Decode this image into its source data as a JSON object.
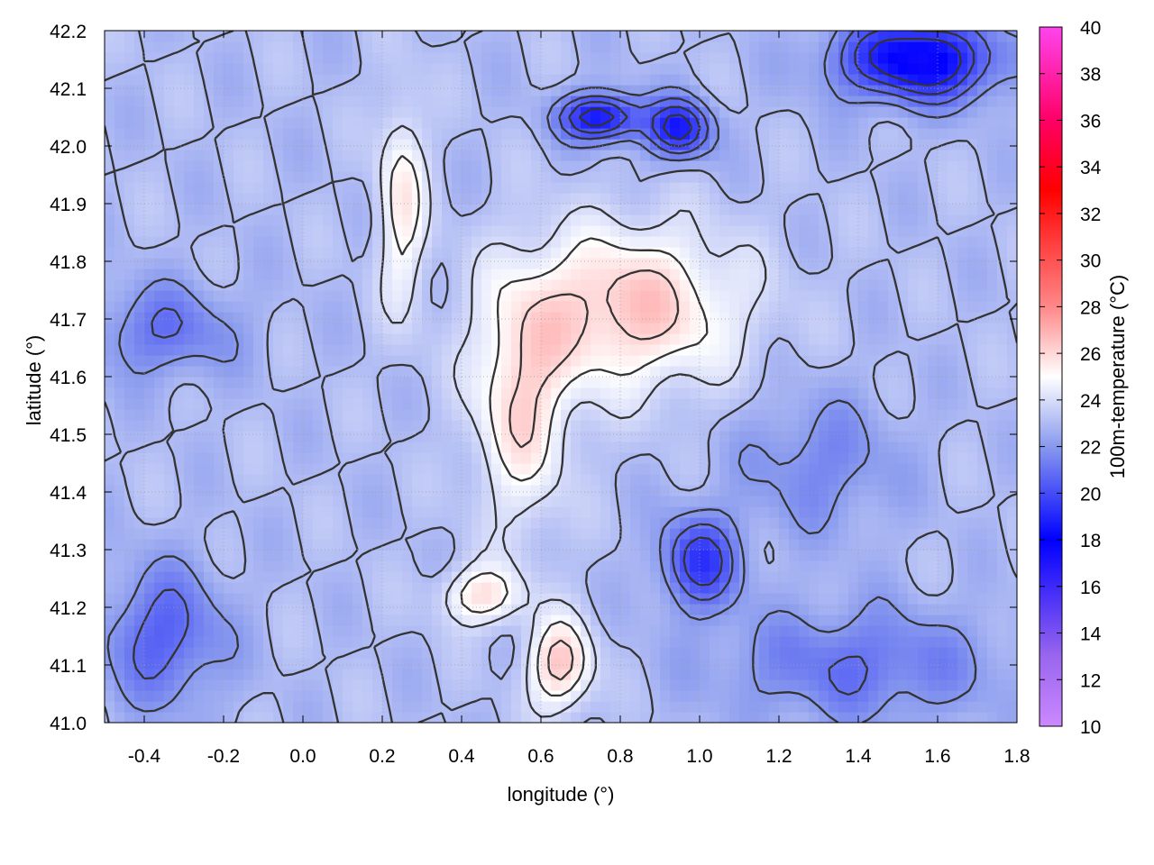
{
  "chart_data": {
    "type": "heatmap",
    "xlabel": "longitude (°)",
    "ylabel": "latitude (°)",
    "colorbar_label": "100m-temperature (°C)",
    "xlim": [
      -0.5,
      1.8
    ],
    "ylim": [
      41.0,
      42.2
    ],
    "x_ticks": [
      "-0.4",
      "-0.2",
      "0.0",
      "0.2",
      "0.4",
      "0.6",
      "0.8",
      "1.0",
      "1.2",
      "1.4",
      "1.6",
      "1.8"
    ],
    "y_ticks": [
      "41.0",
      "41.1",
      "41.2",
      "41.3",
      "41.4",
      "41.5",
      "41.6",
      "41.7",
      "41.8",
      "41.9",
      "42.0",
      "42.1",
      "42.2"
    ],
    "colorbar_range": [
      10,
      40
    ],
    "colorbar_ticks": [
      "10",
      "12",
      "14",
      "16",
      "18",
      "20",
      "22",
      "24",
      "26",
      "28",
      "30",
      "32",
      "34",
      "36",
      "38",
      "40"
    ],
    "colorbar_stops": [
      {
        "value": 10,
        "color": "#cc88ff"
      },
      {
        "value": 13,
        "color": "#9966ee"
      },
      {
        "value": 18,
        "color": "#0000ff"
      },
      {
        "value": 22,
        "color": "#8899ee"
      },
      {
        "value": 25,
        "color": "#ffffff"
      },
      {
        "value": 28,
        "color": "#ff8888"
      },
      {
        "value": 33,
        "color": "#ff0000"
      },
      {
        "value": 36,
        "color": "#ff0066"
      },
      {
        "value": 40,
        "color": "#ff44ee"
      }
    ],
    "grid": true,
    "contour_color": "#333333",
    "warm_cores": [
      {
        "lon": 0.82,
        "lat": 41.72,
        "temp": 26.5,
        "spread_lon": 0.28,
        "spread_lat": 0.14
      },
      {
        "lon": 0.55,
        "lat": 41.55,
        "temp": 25.8,
        "spread_lon": 0.12,
        "spread_lat": 0.2
      },
      {
        "lon": 0.65,
        "lat": 41.1,
        "temp": 26.5,
        "spread_lon": 0.08,
        "spread_lat": 0.08
      },
      {
        "lon": 0.45,
        "lat": 41.22,
        "temp": 25.8,
        "spread_lon": 0.1,
        "spread_lat": 0.05
      },
      {
        "lon": 0.25,
        "lat": 41.9,
        "temp": 25.5,
        "spread_lon": 0.06,
        "spread_lat": 0.18
      }
    ],
    "cool_cores": [
      {
        "lon": 1.55,
        "lat": 42.15,
        "temp": 17.5,
        "spread_lon": 0.2,
        "spread_lat": 0.07
      },
      {
        "lon": 0.75,
        "lat": 42.05,
        "temp": 18.0,
        "spread_lon": 0.1,
        "spread_lat": 0.04
      },
      {
        "lon": 0.95,
        "lat": 42.03,
        "temp": 18.5,
        "spread_lon": 0.08,
        "spread_lat": 0.05
      },
      {
        "lon": 1.0,
        "lat": 41.28,
        "temp": 19.5,
        "spread_lon": 0.1,
        "spread_lat": 0.08
      },
      {
        "lon": 1.4,
        "lat": 41.1,
        "temp": 21.0,
        "spread_lon": 0.35,
        "spread_lat": 0.1
      },
      {
        "lon": -0.35,
        "lat": 41.15,
        "temp": 20.5,
        "spread_lon": 0.15,
        "spread_lat": 0.12
      },
      {
        "lon": -0.35,
        "lat": 41.68,
        "temp": 21.0,
        "spread_lon": 0.18,
        "spread_lat": 0.08
      },
      {
        "lon": 1.3,
        "lat": 41.45,
        "temp": 21.5,
        "spread_lon": 0.2,
        "spread_lat": 0.12
      }
    ],
    "base_temp": 23.0
  }
}
